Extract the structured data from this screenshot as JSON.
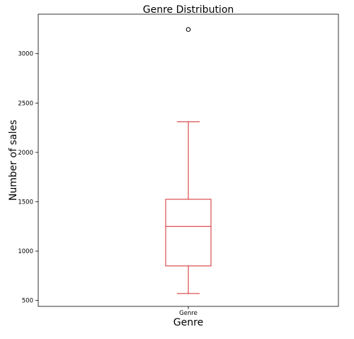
{
  "chart_data": {
    "type": "boxplot",
    "title": "Genre Distribution",
    "xlabel": "Genre",
    "ylabel": "Number of sales",
    "categories": [
      "Genre"
    ],
    "series": [
      {
        "name": "Genre",
        "whisker_low": 570,
        "q1": 850,
        "median": 1250,
        "q3": 1525,
        "whisker_high": 2310,
        "outliers": [
          3245
        ]
      }
    ],
    "ylim": [
      440,
      3400
    ],
    "yticks": [
      500,
      1000,
      1500,
      2000,
      2500,
      3000
    ],
    "grid": false,
    "colors": {
      "box": "#d62728",
      "outlier": "#000000",
      "frame": "#000000"
    }
  }
}
